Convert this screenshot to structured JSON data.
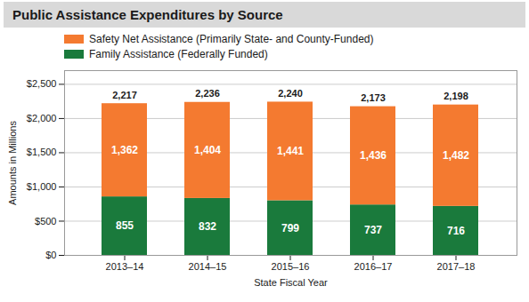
{
  "chart_data": {
    "type": "bar",
    "title": "Public Assistance Expenditures by Source",
    "categories": [
      "2013–14",
      "2014–15",
      "2015–16",
      "2016–17",
      "2017–18"
    ],
    "series": [
      {
        "name": "Family Assistance (Federally Funded)",
        "color": "#1a7a3c",
        "values": [
          855,
          832,
          799,
          737,
          716
        ]
      },
      {
        "name": "Safety Net Assistance (Primarily State- and County-Funded)",
        "color": "#f47a30",
        "values": [
          1362,
          1404,
          1441,
          1436,
          1482
        ],
        "value_labels": [
          "1,362",
          "1,404",
          "1,441",
          "1,436",
          "1,482"
        ]
      }
    ],
    "totals": {
      "values": [
        2217,
        2236,
        2240,
        2173,
        2198
      ],
      "value_labels": [
        "2,217",
        "2,236",
        "2,240",
        "2,173",
        "2,198"
      ]
    },
    "stacked": true,
    "data_labels": true,
    "xlabel": "State Fiscal Year",
    "ylabel": "Amounts in Millions",
    "ylim": [
      0,
      2700
    ],
    "yticks": [
      {
        "value": 0,
        "label": "$0"
      },
      {
        "value": 500,
        "label": "$500"
      },
      {
        "value": 1000,
        "label": "$1,000"
      },
      {
        "value": 1500,
        "label": "$1,500"
      },
      {
        "value": 2000,
        "label": "$2,000"
      },
      {
        "value": 2500,
        "label": "$2,500"
      }
    ],
    "grid": true,
    "legend": "top"
  }
}
